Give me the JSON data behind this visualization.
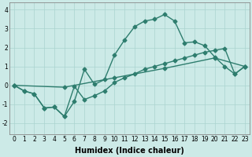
{
  "xlabel": "Humidex (Indice chaleur)",
  "background_color": "#cceae7",
  "grid_color": "#aad4d0",
  "line_color": "#2e7d6e",
  "xlim": [
    -0.5,
    23.5
  ],
  "ylim": [
    -2.6,
    4.4
  ],
  "xticks": [
    0,
    1,
    2,
    3,
    4,
    5,
    6,
    7,
    8,
    9,
    10,
    11,
    12,
    13,
    14,
    15,
    16,
    17,
    18,
    19,
    20,
    21,
    22,
    23
  ],
  "yticks": [
    -2,
    -1,
    0,
    1,
    2,
    3,
    4
  ],
  "line1_x": [
    0,
    1,
    2,
    3,
    4,
    5,
    6,
    7,
    8,
    9,
    10,
    11,
    12,
    13,
    14,
    15,
    16,
    17,
    18,
    19,
    20,
    21,
    22,
    23
  ],
  "line1_y": [
    0.0,
    -0.3,
    -0.45,
    -1.2,
    -1.15,
    -1.65,
    -0.85,
    0.85,
    0.05,
    0.3,
    1.6,
    2.4,
    3.1,
    3.4,
    3.5,
    3.75,
    3.4,
    2.25,
    2.3,
    2.1,
    1.5,
    1.0,
    0.6,
    1.0
  ],
  "line2_x": [
    0,
    1,
    2,
    3,
    4,
    5,
    6,
    7,
    8,
    9,
    10,
    11,
    12,
    13,
    14,
    15,
    16,
    17,
    18,
    19,
    20,
    21,
    22,
    23
  ],
  "line2_y": [
    0.0,
    -0.3,
    -0.45,
    -1.2,
    -1.15,
    -1.65,
    -0.05,
    -0.75,
    -0.55,
    -0.3,
    0.15,
    0.4,
    0.6,
    0.85,
    1.0,
    1.15,
    1.3,
    1.45,
    1.6,
    1.75,
    1.85,
    1.95,
    0.6,
    1.0
  ],
  "line3_x": [
    0,
    5,
    10,
    15,
    20,
    23
  ],
  "line3_y": [
    0.0,
    -0.1,
    0.4,
    0.9,
    1.45,
    1.0
  ],
  "marker_size": 2.5,
  "line_width": 1.0,
  "font_size_label": 7,
  "font_size_tick": 5.5
}
